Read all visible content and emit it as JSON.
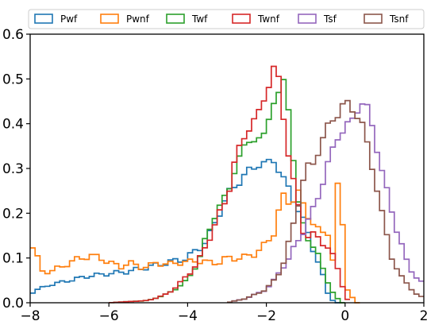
{
  "chart_data": {
    "type": "histogram",
    "x_ticks": [
      "−8",
      "−6",
      "−4",
      "−2",
      "0",
      "2"
    ],
    "y_ticks": [
      "0.0",
      "0.1",
      "0.2",
      "0.3",
      "0.4",
      "0.5",
      "0.6"
    ],
    "xlim": [
      -8,
      2
    ],
    "ylim": [
      0,
      0.6
    ],
    "grid": false,
    "legend_position": "top",
    "bin_width": 0.125,
    "series": [
      {
        "name": "Pwf",
        "color": "#1f77b4",
        "points": [
          [
            -8,
            0.02
          ],
          [
            -7.8,
            0.03
          ],
          [
            -7.5,
            0.04
          ],
          [
            -7,
            0.05
          ],
          [
            -6.5,
            0.06
          ],
          [
            -6,
            0.065
          ],
          [
            -5.5,
            0.07
          ],
          [
            -5,
            0.08
          ],
          [
            -4.5,
            0.09
          ],
          [
            -4,
            0.1
          ],
          [
            -3.5,
            0.14
          ],
          [
            -3.2,
            0.2
          ],
          [
            -3,
            0.24
          ],
          [
            -2.7,
            0.27
          ],
          [
            -2.5,
            0.29
          ],
          [
            -2.2,
            0.31
          ],
          [
            -2,
            0.31
          ],
          [
            -1.8,
            0.32
          ],
          [
            -1.6,
            0.28
          ],
          [
            -1.4,
            0.25
          ],
          [
            -1.2,
            0.21
          ],
          [
            -1,
            0.17
          ],
          [
            -0.8,
            0.12
          ],
          [
            -0.6,
            0.07
          ],
          [
            -0.4,
            0.01
          ],
          [
            -0.2,
            0
          ]
        ]
      },
      {
        "name": "Pwnf",
        "color": "#ff7f0e",
        "points": [
          [
            -8,
            0.135
          ],
          [
            -7.9,
            0.12
          ],
          [
            -7.7,
            0.07
          ],
          [
            -7.5,
            0.07
          ],
          [
            -7.2,
            0.08
          ],
          [
            -7,
            0.09
          ],
          [
            -6.7,
            0.1
          ],
          [
            -6.5,
            0.105
          ],
          [
            -6.2,
            0.1
          ],
          [
            -6,
            0.09
          ],
          [
            -5.7,
            0.08
          ],
          [
            -5.5,
            0.09
          ],
          [
            -5.2,
            0.08
          ],
          [
            -5,
            0.08
          ],
          [
            -4.8,
            0.09
          ],
          [
            -4.5,
            0.085
          ],
          [
            -4.3,
            0.09
          ],
          [
            -4,
            0.09
          ],
          [
            -3.8,
            0.095
          ],
          [
            -3.5,
            0.09
          ],
          [
            -3.2,
            0.09
          ],
          [
            -3,
            0.1
          ],
          [
            -2.8,
            0.1
          ],
          [
            -2.6,
            0.1
          ],
          [
            -2.3,
            0.11
          ],
          [
            -2,
            0.13
          ],
          [
            -1.8,
            0.16
          ],
          [
            -1.6,
            0.24
          ],
          [
            -1.4,
            0.22
          ],
          [
            -1.2,
            0.25
          ],
          [
            -1,
            0.2
          ],
          [
            -0.8,
            0.18
          ],
          [
            -0.6,
            0.15
          ],
          [
            -0.4,
            0.16
          ],
          [
            -0.3,
            0.09
          ],
          [
            -0.2,
            0.26
          ],
          [
            -0.1,
            0.25
          ],
          [
            0,
            0.04
          ],
          [
            0.2,
            0.01
          ],
          [
            0.3,
            0
          ]
        ]
      },
      {
        "name": "Twf",
        "color": "#2ca02c",
        "points": [
          [
            -6,
            0
          ],
          [
            -5,
            0.005
          ],
          [
            -4.5,
            0.02
          ],
          [
            -4,
            0.05
          ],
          [
            -3.7,
            0.1
          ],
          [
            -3.5,
            0.15
          ],
          [
            -3.3,
            0.2
          ],
          [
            -3,
            0.24
          ],
          [
            -2.8,
            0.3
          ],
          [
            -2.6,
            0.34
          ],
          [
            -2.4,
            0.37
          ],
          [
            -2.2,
            0.36
          ],
          [
            -2,
            0.38
          ],
          [
            -1.9,
            0.44
          ],
          [
            -1.8,
            0.45
          ],
          [
            -1.6,
            0.47
          ],
          [
            -1.5,
            0.54
          ],
          [
            -1.4,
            0.38
          ],
          [
            -1.3,
            0.31
          ],
          [
            -1.2,
            0.22
          ],
          [
            -1,
            0.16
          ],
          [
            -0.8,
            0.12
          ],
          [
            -0.6,
            0.09
          ],
          [
            -0.5,
            0.06
          ],
          [
            -0.3,
            0.02
          ],
          [
            -0.1,
            0
          ]
        ]
      },
      {
        "name": "Twnf",
        "color": "#d62728",
        "points": [
          [
            -6,
            0
          ],
          [
            -5,
            0.005
          ],
          [
            -4.5,
            0.02
          ],
          [
            -4,
            0.06
          ],
          [
            -3.6,
            0.11
          ],
          [
            -3.3,
            0.18
          ],
          [
            -3,
            0.23
          ],
          [
            -2.8,
            0.32
          ],
          [
            -2.6,
            0.36
          ],
          [
            -2.4,
            0.4
          ],
          [
            -2.2,
            0.42
          ],
          [
            -2,
            0.47
          ],
          [
            -1.9,
            0.5
          ],
          [
            -1.75,
            0.54
          ],
          [
            -1.6,
            0.44
          ],
          [
            -1.4,
            0.31
          ],
          [
            -1.2,
            0.22
          ],
          [
            -1.1,
            0.17
          ],
          [
            -1,
            0.15
          ],
          [
            -0.8,
            0.15
          ],
          [
            -0.6,
            0.14
          ],
          [
            -0.4,
            0.12
          ],
          [
            -0.2,
            0.08
          ],
          [
            0,
            0.02
          ],
          [
            0.1,
            0
          ]
        ]
      },
      {
        "name": "Tsf",
        "color": "#9467bd",
        "points": [
          [
            -3,
            0
          ],
          [
            -2.5,
            0.01
          ],
          [
            -2,
            0.03
          ],
          [
            -1.8,
            0.05
          ],
          [
            -1.6,
            0.08
          ],
          [
            -1.4,
            0.1
          ],
          [
            -1.2,
            0.14
          ],
          [
            -1,
            0.17
          ],
          [
            -0.8,
            0.21
          ],
          [
            -0.6,
            0.26
          ],
          [
            -0.4,
            0.32
          ],
          [
            -0.2,
            0.37
          ],
          [
            0,
            0.39
          ],
          [
            0.2,
            0.41
          ],
          [
            0.4,
            0.45
          ],
          [
            0.6,
            0.43
          ],
          [
            0.8,
            0.35
          ],
          [
            1,
            0.27
          ],
          [
            1.2,
            0.2
          ],
          [
            1.4,
            0.14
          ],
          [
            1.6,
            0.08
          ],
          [
            1.8,
            0.06
          ],
          [
            2,
            0.04
          ]
        ]
      },
      {
        "name": "Tsnf",
        "color": "#8c564b",
        "points": [
          [
            -3,
            0
          ],
          [
            -2.5,
            0.01
          ],
          [
            -2,
            0.03
          ],
          [
            -1.8,
            0.05
          ],
          [
            -1.6,
            0.08
          ],
          [
            -1.4,
            0.14
          ],
          [
            -1.2,
            0.22
          ],
          [
            -1,
            0.3
          ],
          [
            -0.8,
            0.31
          ],
          [
            -0.6,
            0.36
          ],
          [
            -0.4,
            0.4
          ],
          [
            -0.2,
            0.42
          ],
          [
            0,
            0.45
          ],
          [
            0.2,
            0.43
          ],
          [
            0.4,
            0.41
          ],
          [
            0.6,
            0.34
          ],
          [
            0.8,
            0.26
          ],
          [
            1,
            0.17
          ],
          [
            1.2,
            0.1
          ],
          [
            1.4,
            0.06
          ],
          [
            1.6,
            0.04
          ],
          [
            1.8,
            0.02
          ],
          [
            2,
            0.01
          ]
        ]
      }
    ]
  }
}
